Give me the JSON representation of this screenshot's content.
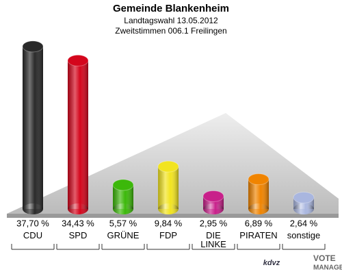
{
  "chart_data": {
    "type": "bar",
    "title": "Gemeinde Blankenheim",
    "subtitle": [
      "Landtagswahl 13.05.2012",
      "Zweitstimmen 006.1 Freilingen"
    ],
    "categories": [
      "CDU",
      "SPD",
      "GRÜNE",
      "FDP",
      "DIE LINKE",
      "PIRATEN",
      "sonstige"
    ],
    "values": [
      37.7,
      34.43,
      5.57,
      9.84,
      2.95,
      6.89,
      2.64
    ],
    "value_labels": [
      "37,70 %",
      "34,43 %",
      "5,57 %",
      "9,84 %",
      "2,95 %",
      "6,89 %",
      "2,64 %"
    ],
    "colors": [
      "#2a2a2a",
      "#d4061c",
      "#3cb80a",
      "#f2e420",
      "#c8208a",
      "#f08400",
      "#a9b6df"
    ],
    "logo_text": [
      "kdvz",
      "VOTE",
      "MANAGER"
    ]
  }
}
